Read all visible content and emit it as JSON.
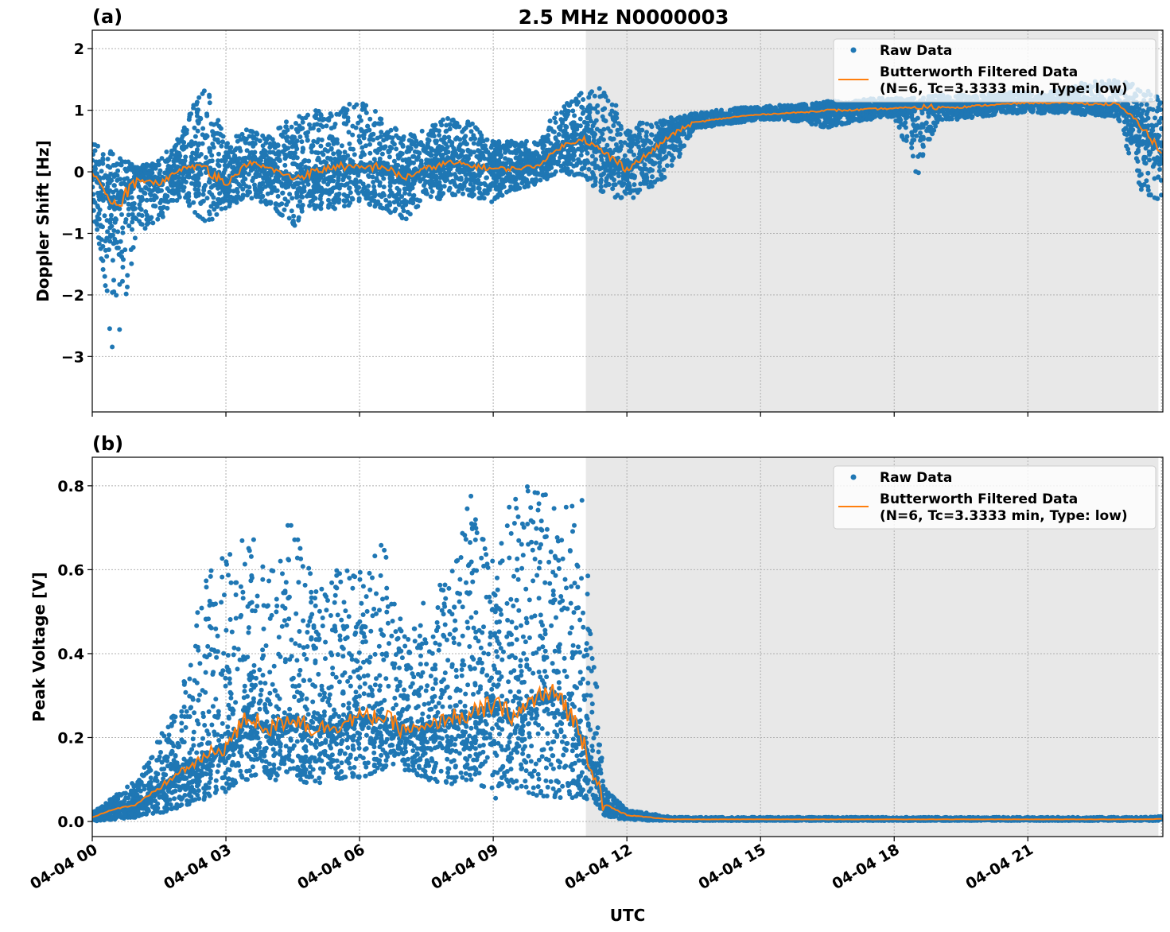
{
  "figure_title": "2.5 MHz N0000003",
  "xlabel": "UTC",
  "x_tick_labels": [
    "04-04 00",
    "04-04 03",
    "04-04 06",
    "04-04 09",
    "04-04 12",
    "04-04 15",
    "04-04 18",
    "04-04 21"
  ],
  "colors": {
    "raw": "#1f77b4",
    "filtered": "#ff7f0e",
    "shade": "#e8e8e8",
    "grid": "#b0b0b0"
  },
  "chart_data": [
    {
      "type": "scatter",
      "panel_label": "(a)",
      "ylabel": "Doppler Shift [Hz]",
      "x_unit": "hours UTC on 04-04",
      "xlim": [
        0,
        24.03
      ],
      "ylim": [
        -3.9,
        2.3
      ],
      "yticks": [
        -3,
        -2,
        -1,
        0,
        1,
        2
      ],
      "ytick_labels": [
        "−3",
        "−2",
        "−1",
        "0",
        "1",
        "2"
      ],
      "grid": true,
      "shaded_interval_hours": [
        11.08,
        23.93
      ],
      "legend": {
        "placement": "top-right",
        "entries": [
          "Raw Data",
          "Butterworth Filtered Data",
          "(N=6, Tc=3.3333 min, Type: low)"
        ]
      },
      "x": [
        0,
        0.5,
        1,
        1.5,
        2,
        2.5,
        3,
        3.5,
        4,
        4.5,
        5,
        5.5,
        6,
        6.5,
        7,
        7.5,
        8,
        8.5,
        9,
        9.5,
        10,
        10.5,
        11,
        11.5,
        12,
        12.5,
        13,
        13.5,
        14,
        14.5,
        15,
        15.5,
        16,
        16.5,
        17,
        17.5,
        18,
        18.5,
        19,
        19.5,
        20,
        20.5,
        21,
        21.5,
        22,
        22.5,
        23,
        23.5,
        24
      ],
      "filtered": [
        0,
        -0.6,
        -0.1,
        -0.2,
        0.05,
        0.1,
        -0.2,
        0.15,
        0.05,
        -0.1,
        0,
        0.1,
        0.05,
        0.1,
        -0.1,
        0.05,
        0.15,
        0.1,
        0.05,
        0.05,
        0.1,
        0.4,
        0.55,
        0.3,
        0.05,
        0.3,
        0.6,
        0.8,
        0.85,
        0.9,
        0.93,
        0.95,
        0.97,
        1.0,
        1.0,
        1.02,
        1.03,
        1.05,
        1.05,
        1.05,
        1.08,
        1.1,
        1.12,
        1.12,
        1.12,
        1.1,
        1.1,
        0.8,
        0.3
      ],
      "raw_low": [
        -0.5,
        -3.2,
        -1.0,
        -0.8,
        -0.4,
        -0.9,
        -0.6,
        -0.4,
        -0.6,
        -0.9,
        -0.6,
        -0.6,
        -0.5,
        -0.6,
        -0.8,
        -0.5,
        -0.4,
        -0.4,
        -0.5,
        -0.3,
        -0.2,
        0,
        -0.1,
        -0.4,
        -0.5,
        -0.3,
        0,
        0.7,
        0.75,
        0.8,
        0.85,
        0.85,
        0.8,
        0.7,
        0.8,
        0.85,
        0.9,
        -0.1,
        0.85,
        0.85,
        0.9,
        0.95,
        0.95,
        0.95,
        0.95,
        0.9,
        0.9,
        -0.3,
        -0.5
      ],
      "raw_high": [
        0.5,
        0.3,
        0.1,
        0.2,
        0.6,
        1.5,
        0.5,
        0.7,
        0.6,
        0.9,
        1.0,
        1.0,
        1.2,
        0.9,
        0.6,
        0.7,
        0.9,
        0.8,
        0.5,
        0.5,
        0.5,
        1.1,
        1.3,
        1.4,
        0.8,
        0.8,
        0.9,
        0.95,
        1.0,
        1.05,
        1.05,
        1.1,
        1.1,
        1.15,
        1.15,
        1.2,
        1.2,
        1.2,
        1.25,
        1.25,
        1.25,
        1.3,
        1.3,
        1.3,
        1.4,
        1.5,
        1.5,
        1.4,
        1.2
      ]
    },
    {
      "type": "scatter",
      "panel_label": "(b)",
      "ylabel": "Peak Voltage [V]",
      "x_unit": "hours UTC on 04-04",
      "xlim": [
        0,
        24.03
      ],
      "ylim": [
        -0.036,
        0.868
      ],
      "yticks": [
        0,
        0.2,
        0.4,
        0.6,
        0.8
      ],
      "ytick_labels": [
        "0.0",
        "0.2",
        "0.4",
        "0.6",
        "0.8"
      ],
      "grid": true,
      "shaded_interval_hours": [
        11.08,
        23.93
      ],
      "legend": {
        "placement": "top-right",
        "entries": [
          "Raw Data",
          "Butterworth Filtered Data",
          "(N=6, Tc=3.3333 min, Type: low)"
        ]
      },
      "x": [
        0,
        0.5,
        1,
        1.5,
        2,
        2.5,
        3,
        3.5,
        4,
        4.5,
        5,
        5.5,
        6,
        6.5,
        7,
        7.5,
        8,
        8.5,
        9,
        9.5,
        10,
        10.5,
        11,
        11.5,
        12,
        12.5,
        13,
        13.5,
        14,
        14.5,
        15,
        15.5,
        16,
        16.5,
        17,
        17.5,
        18,
        18.5,
        19,
        19.5,
        20,
        20.5,
        21,
        21.5,
        22,
        22.5,
        23,
        23.5,
        24
      ],
      "filtered": [
        0.01,
        0.03,
        0.04,
        0.08,
        0.12,
        0.15,
        0.18,
        0.25,
        0.22,
        0.25,
        0.22,
        0.23,
        0.25,
        0.25,
        0.22,
        0.22,
        0.25,
        0.25,
        0.28,
        0.25,
        0.3,
        0.3,
        0.2,
        0.04,
        0.015,
        0.01,
        0.005,
        0.005,
        0.005,
        0.005,
        0.005,
        0.005,
        0.005,
        0.005,
        0.005,
        0.005,
        0.005,
        0.005,
        0.005,
        0.005,
        0.005,
        0.005,
        0.005,
        0.005,
        0.005,
        0.005,
        0.005,
        0.005,
        0.006
      ],
      "raw_low": [
        0,
        0.005,
        0.01,
        0.02,
        0.03,
        0.05,
        0.07,
        0.1,
        0.09,
        0.1,
        0.08,
        0.1,
        0.1,
        0.12,
        0.12,
        0.1,
        0.08,
        0.1,
        0.05,
        0.08,
        0.06,
        0.05,
        0.06,
        0.01,
        0.005,
        0.002,
        0.002,
        0.002,
        0.002,
        0.002,
        0.002,
        0.002,
        0.002,
        0.002,
        0.002,
        0.002,
        0.002,
        0.002,
        0.002,
        0.002,
        0.002,
        0.002,
        0.002,
        0.002,
        0.002,
        0.002,
        0.002,
        0.002,
        0.002
      ],
      "raw_high": [
        0.02,
        0.06,
        0.1,
        0.2,
        0.3,
        0.58,
        0.65,
        0.7,
        0.6,
        0.75,
        0.55,
        0.6,
        0.6,
        0.68,
        0.45,
        0.55,
        0.6,
        0.78,
        0.65,
        0.8,
        0.8,
        0.75,
        0.78,
        0.08,
        0.03,
        0.02,
        0.01,
        0.01,
        0.01,
        0.01,
        0.01,
        0.01,
        0.01,
        0.01,
        0.01,
        0.01,
        0.01,
        0.01,
        0.01,
        0.01,
        0.01,
        0.01,
        0.01,
        0.01,
        0.01,
        0.01,
        0.01,
        0.01,
        0.012
      ]
    }
  ]
}
